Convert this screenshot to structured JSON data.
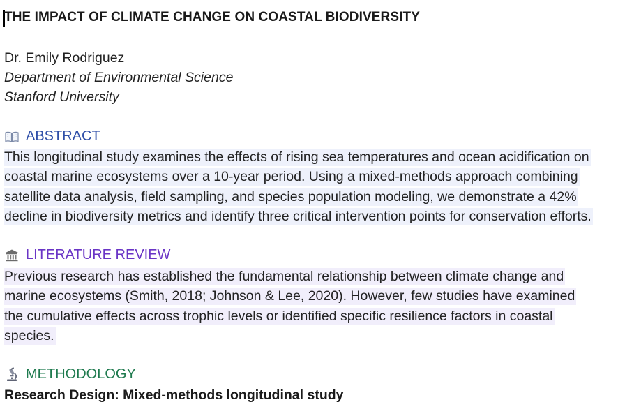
{
  "paper": {
    "title": "THE IMPACT OF CLIMATE CHANGE ON COASTAL BIODIVERSITY",
    "author": "Dr. Emily Rodriguez",
    "department": "Department of Environmental Science",
    "university": "Stanford University"
  },
  "sections": {
    "abstract": {
      "icon": "book-icon",
      "heading": "ABSTRACT",
      "color": "#2f4fa8",
      "lines": [
        "This longitudinal study examines the effects of rising sea temperatures and ocean acidification on",
        "coastal marine ecosystems over a 10-year period. Using a mixed-methods approach combining",
        "satellite data analysis, field sampling, and species population modeling, we demonstrate a 42%",
        "decline in biodiversity metrics and identify three critical intervention points for conservation efforts."
      ]
    },
    "literature_review": {
      "icon": "classical-building-icon",
      "heading": "LITERATURE REVIEW",
      "color": "#6a35c6",
      "lines": [
        "Previous research has established the fundamental relationship between climate change and",
        "marine ecosystems (Smith, 2018; Johnson & Lee, 2020). However, few studies have examined",
        "the cumulative effects across trophic levels or identified specific resilience factors in coastal",
        "species."
      ]
    },
    "methodology": {
      "icon": "microscope-icon",
      "heading": "METHODOLOGY",
      "color": "#1e7a4e",
      "research_design": "Research Design: Mixed-methods longitudinal study"
    }
  }
}
